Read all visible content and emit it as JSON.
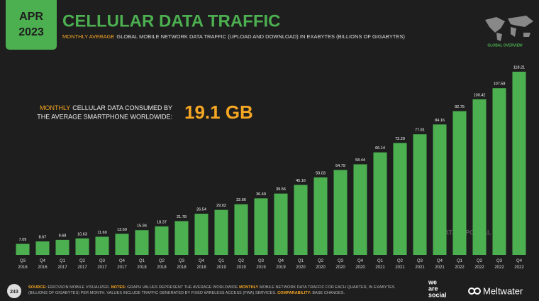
{
  "badge": {
    "month": "APR",
    "year": "2023"
  },
  "global_overview": "GLOBAL OVERVIEW",
  "callout": {
    "highlight": "MONTHLY",
    "line1": "CELLULAR DATA CONSUMED BY",
    "line2": "THE AVERAGE SMARTPHONE WORLDWIDE:",
    "figure": "19.1 GB"
  },
  "watermark": "DATAREPORTAL",
  "footer": {
    "page": "243",
    "source_label": "SOURCE:",
    "source": "ERICSSON MOBILE VISUALIZER.",
    "notes_label": "NOTES:",
    "notes_1": "GRAPH VALUES REPRESENT THE AVERAGE WORLDWIDE",
    "notes_highlight": "MONTHLY",
    "notes_2": "MOBILE NETWORK DATA TRAFFIC FOR EACH QUARTER, IN EXABYTES (BILLIONS OF GIGABYTES) PER MONTH. VALUES INCLUDE TRAFFIC GENERATED BY FIXED WIRELESS ACCESS (FWA) SERVICES.",
    "comparability_label": "COMPARABILITY:",
    "comparability": "BASE CHANGES."
  },
  "branding": {
    "we": "we",
    "are": "are",
    "social": "social",
    "meltwater": "Meltwater"
  },
  "chart_data": {
    "type": "bar",
    "title": "CELLULAR DATA TRAFFIC",
    "subtitle_highlight": "MONTHLY AVERAGE",
    "subtitle": "GLOBAL MOBILE NETWORK DATA TRAFFIC (UPLOAD AND DOWNLOAD) IN EXABYTES (BILLIONS OF GIGABYTES)",
    "color": "#4caf50",
    "categories": [
      [
        "Q3",
        "2016"
      ],
      [
        "Q4",
        "2016"
      ],
      [
        "Q1",
        "2017"
      ],
      [
        "Q2",
        "2017"
      ],
      [
        "Q3",
        "2017"
      ],
      [
        "Q4",
        "2017"
      ],
      [
        "Q1",
        "2018"
      ],
      [
        "Q2",
        "2018"
      ],
      [
        "Q3",
        "2018"
      ],
      [
        "Q4",
        "2018"
      ],
      [
        "Q1",
        "2019"
      ],
      [
        "Q2",
        "2019"
      ],
      [
        "Q3",
        "2019"
      ],
      [
        "Q4",
        "2019"
      ],
      [
        "Q1",
        "2020"
      ],
      [
        "Q2",
        "2020"
      ],
      [
        "Q3",
        "2020"
      ],
      [
        "Q4",
        "2020"
      ],
      [
        "Q1",
        "2021"
      ],
      [
        "Q2",
        "2021"
      ],
      [
        "Q3",
        "2021"
      ],
      [
        "Q4",
        "2021"
      ],
      [
        "Q1",
        "2022"
      ],
      [
        "Q2",
        "2022"
      ],
      [
        "Q3",
        "2022"
      ],
      [
        "Q4",
        "2022"
      ]
    ],
    "values": [
      7.09,
      8.67,
      9.68,
      10.63,
      11.69,
      13.6,
      15.94,
      18.37,
      21.78,
      26.54,
      29.02,
      32.66,
      36.49,
      39.56,
      45.16,
      50.03,
      54.79,
      58.44,
      66.14,
      72.2,
      77.81,
      84.16,
      92.75,
      100.42,
      107.58,
      118.21
    ],
    "value_labels": [
      "7.09",
      "8.67",
      "9.68",
      "10.63",
      "11.69",
      "13.60",
      "15.94",
      "18.37",
      "21.78",
      "26.54",
      "29.02",
      "32.66",
      "36.49",
      "39.56",
      "45.16",
      "50.03",
      "54.79",
      "58.44",
      "66.14",
      "72.20",
      "77.81",
      "84.16",
      "92.75",
      "100.42",
      "107.58",
      "118.21"
    ]
  }
}
